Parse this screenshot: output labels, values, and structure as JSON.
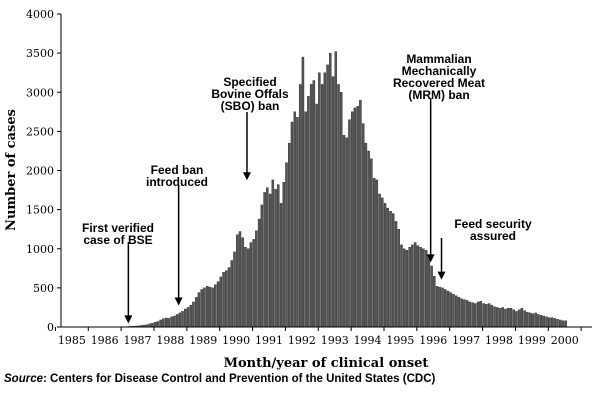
{
  "chart_data": {
    "type": "bar",
    "title": "",
    "xlabel": "Month/year of clinical onset",
    "ylabel": "Number of cases",
    "ylim": [
      0,
      4000
    ],
    "xlim": [
      1984.67,
      2000.83
    ],
    "yticks": [
      0,
      500,
      1000,
      1500,
      2000,
      2500,
      3000,
      3500,
      4000
    ],
    "xtick_labels": [
      "1985",
      "1986",
      "1987",
      "1988",
      "1989",
      "1990",
      "1991",
      "1992",
      "1993",
      "1994",
      "1995",
      "1996",
      "1997",
      "1998",
      "1999",
      "2000"
    ],
    "grid": false,
    "x_start": 1984.67,
    "x_step": 0.0833,
    "values": [
      0,
      0,
      0,
      0,
      0,
      0,
      0,
      0,
      0,
      0,
      0,
      0,
      0,
      0,
      0,
      0,
      0,
      0,
      0,
      0,
      0,
      0,
      2,
      3,
      5,
      8,
      10,
      12,
      15,
      20,
      25,
      30,
      40,
      50,
      60,
      70,
      90,
      105,
      115,
      110,
      130,
      140,
      160,
      180,
      200,
      230,
      250,
      280,
      320,
      380,
      440,
      480,
      500,
      520,
      510,
      500,
      540,
      580,
      640,
      700,
      720,
      760,
      850,
      960,
      1180,
      1220,
      1140,
      1020,
      1000,
      1080,
      1120,
      1230,
      1380,
      1560,
      1720,
      1780,
      1700,
      1880,
      1760,
      1820,
      1580,
      1850,
      2100,
      2350,
      2620,
      2750,
      2680,
      3100,
      3450,
      2750,
      2950,
      3100,
      3150,
      2850,
      3250,
      3100,
      3250,
      3350,
      3500,
      3200,
      3520,
      3100,
      3000,
      2450,
      2420,
      2650,
      2750,
      2800,
      2820,
      2900,
      2600,
      2350,
      2250,
      2150,
      1900,
      1880,
      1700,
      1650,
      1580,
      1520,
      1480,
      1450,
      1350,
      1250,
      1050,
      1000,
      980,
      1020,
      1050,
      1080,
      1040,
      1020,
      1000,
      980,
      900,
      780,
      650,
      520,
      510,
      500,
      480,
      460,
      440,
      420,
      400,
      380,
      360,
      350,
      340,
      320,
      310,
      300,
      320,
      330,
      300,
      290,
      300,
      280,
      260,
      250,
      240,
      250,
      230,
      240,
      240,
      220,
      200,
      220,
      240,
      210,
      190,
      180,
      170,
      180,
      160,
      150,
      140,
      130,
      120,
      120,
      110,
      100,
      90,
      80,
      80
    ]
  },
  "annotations": [
    {
      "id": "first-bse",
      "lines": [
        "First verified",
        "case of BSE"
      ],
      "x": 1986.72,
      "arrow_to_y": 20
    },
    {
      "id": "feed-ban",
      "lines": [
        "Feed ban",
        "introduced"
      ],
      "x": 1988.25,
      "arrow_to_y": 250
    },
    {
      "id": "sbo-ban",
      "lines": [
        "Specified",
        "Bovine Offals",
        "(SBO) ban"
      ],
      "x": 1990.33,
      "arrow_to_y": 1850
    },
    {
      "id": "mrm-ban",
      "lines": [
        "Mammalian",
        "Mechanically",
        "Recovered Meat",
        "(MRM) ban"
      ],
      "x": 1995.92,
      "arrow_to_y": 800
    },
    {
      "id": "feed-security",
      "lines": [
        "Feed security",
        "assured"
      ],
      "x": 1996.25,
      "arrow_to_y": 580
    }
  ],
  "source": {
    "label": "Source",
    "text": ": Centers for Disease Control and Prevention of the United States (CDC)"
  }
}
